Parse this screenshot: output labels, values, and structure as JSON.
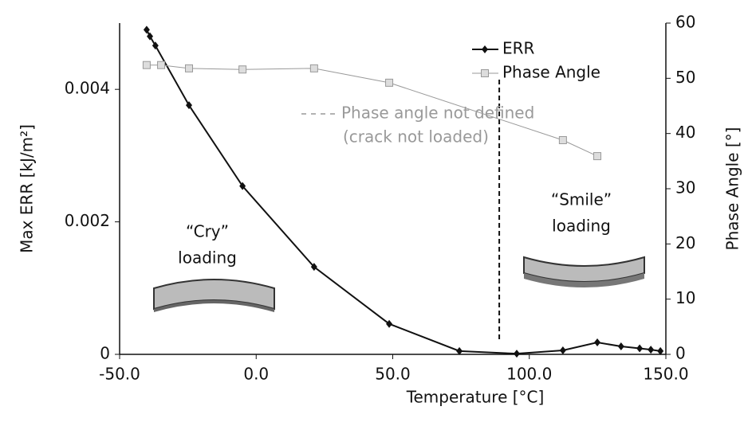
{
  "chart_data": {
    "type": "line",
    "x_label": "Temperature [°C]",
    "y_label": "Max ERR [kJ/m²]",
    "y2_label": "Phase Angle [°]",
    "xlim": [
      -50,
      150
    ],
    "xticks": [
      {
        "value": -50,
        "label": "-50.0"
      },
      {
        "value": 0,
        "label": "0.0"
      },
      {
        "value": 50,
        "label": "50.0"
      },
      {
        "value": 100,
        "label": "100.0"
      },
      {
        "value": 150,
        "label": "150.0"
      }
    ],
    "ylim": [
      0,
      0.005
    ],
    "yticks": [
      0,
      0.002,
      0.004
    ],
    "y2lim": [
      0,
      60
    ],
    "y2ticks": [
      0,
      10,
      20,
      30,
      40,
      50,
      60
    ],
    "legend": "top-right",
    "series": [
      {
        "name": "ERR",
        "color": "#111111",
        "marker": "diamond",
        "x": [
          -40.1,
          -38.9,
          -36.9,
          -24.6,
          -5,
          21.2,
          48.7,
          74.4,
          95.4,
          112.3,
          124.9,
          133.6,
          140.4,
          144.5,
          148
        ],
        "values": [
          0.0049,
          0.0048,
          0.00466,
          0.00376,
          0.00254,
          0.00132,
          0.00046,
          5e-05,
          1e-05,
          6e-05,
          0.00018,
          0.00012,
          9e-05,
          7e-05,
          5e-05
        ]
      },
      {
        "name": "Phase Angle",
        "color": "#999999",
        "marker": "square",
        "axis": "y2",
        "x": [
          -40.1,
          -34.8,
          -24.6,
          -5,
          21.2,
          48.7,
          112.3,
          124.9
        ],
        "values": [
          52.4,
          52.4,
          51.8,
          51.6,
          51.8,
          49.2,
          38.8,
          35.9
        ]
      }
    ],
    "vline_x": 89,
    "annotations": {
      "undefined": [
        "Phase angle not defined",
        "(crack not loaded)"
      ],
      "cry": [
        "“Cry”",
        "loading"
      ],
      "smile": [
        "“Smile”",
        "loading"
      ]
    }
  }
}
